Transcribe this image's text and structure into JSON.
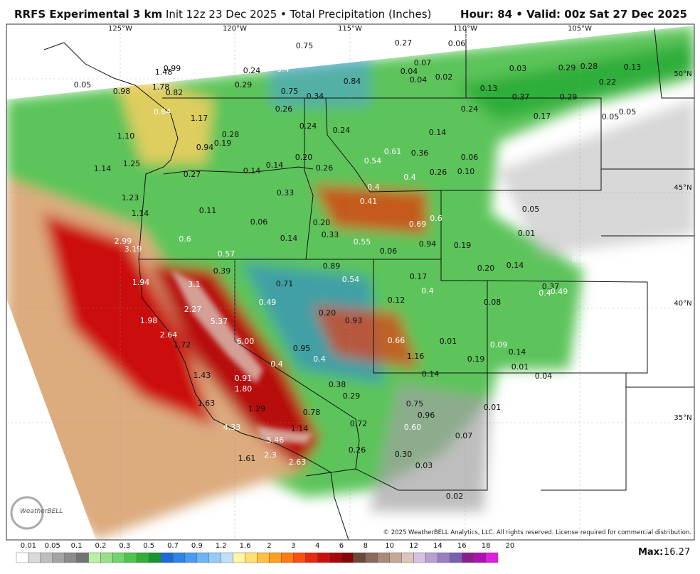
{
  "header": {
    "model": "RRFS Experimental 3 km",
    "info": "Init 12z 23 Dec 2025 • Total Precipitation (Inches)",
    "valid": "Hour: 84 • Valid: 00z Sat 27 Dec 2025"
  },
  "lon_labels": [
    "125°W",
    "120°W",
    "115°W",
    "110°W",
    "105°W"
  ],
  "lat_labels": [
    "50°N",
    "45°N",
    "40°N",
    "35°N"
  ],
  "map_labels": [
    "0.75",
    "0.45",
    "0.27",
    "0.09",
    "0.06",
    "0.07",
    "0.04",
    "0.04",
    "0.02",
    "0.03",
    "0.29",
    "0.28",
    "0.13",
    "0.22",
    "0.13",
    "0.37",
    "0.29",
    "1.48",
    "0.99",
    "0.24",
    "0.4",
    "0.29",
    "0.75",
    "0.34",
    "0.84",
    "0.05",
    "0.98",
    "1.78",
    "0.82",
    "0.64",
    "1.17",
    "0.26",
    "0.24",
    "0.17",
    "0.05",
    "0.05",
    "0.24",
    "0.24",
    "0.14",
    "0.28",
    "1.10",
    "0.19",
    "0.94",
    "0.61",
    "0.36",
    "0.06",
    "0.20",
    "0.26",
    "0.14",
    "0.14",
    "0.27",
    "1.14",
    "1.25",
    "0.54",
    "0.26",
    "0.10",
    "0.4",
    "0.4",
    "0.33",
    "1.23",
    "0.41",
    "0.05",
    "0.11",
    "1.14",
    "0.06",
    "0.20",
    "0.6",
    "0.69",
    "0.01",
    "0.33",
    "0.14",
    "0.55",
    "2.99",
    "0.6",
    "0.94",
    "0.19",
    "3.19",
    "0.06",
    "0.57",
    "0.89",
    "0.20",
    "0.14",
    "0.09",
    "0.39",
    "0.54",
    "0.17",
    "1.94",
    "3.1",
    "0.71",
    "0.37",
    "0.49",
    "0.4",
    "0.4",
    "0.49",
    "0.12",
    "0.08",
    "2.27",
    "0.20",
    "5.37",
    "1.98",
    "0.93",
    "2.64",
    "6.00",
    "0.66",
    "0.01",
    "0.09",
    "1.72",
    "0.95",
    "1.16",
    "0.14",
    "0.19",
    "0.4",
    "0.4",
    "0.01",
    "0.04",
    "1.43",
    "0.14",
    "0.91",
    "0.38",
    "1.80",
    "0.29",
    "1.63",
    "0.75",
    "0.01",
    "1.29",
    "0.78",
    "0.96",
    "4.33",
    "1.14",
    "0.72",
    "0.60",
    "0.07",
    "5.46",
    "0.26",
    "0.30",
    "1.61",
    "2.3",
    "2.63",
    "0.03",
    "0.02"
  ],
  "colorbar": {
    "labels": [
      "0.01",
      "0.05",
      "0.1",
      "0.2",
      "0.3",
      "0.5",
      "0.7",
      "0.9",
      "1.2",
      "1.6",
      "2",
      "3",
      "4",
      "6",
      "8",
      "10",
      "12",
      "14",
      "16",
      "18",
      "20"
    ],
    "colors": [
      "#ffffff",
      "#d9d9d9",
      "#bdbdbd",
      "#a3a3a3",
      "#8c8c8c",
      "#737373",
      "#b8f0a8",
      "#96e08a",
      "#73d36c",
      "#4fc24f",
      "#2fae3a",
      "#1a9430",
      "#1d6ad6",
      "#2b84e6",
      "#4a9cf0",
      "#6fb4f5",
      "#95cbf7",
      "#bfe0fa",
      "#fff4a0",
      "#ffe070",
      "#ffc040",
      "#ffa020",
      "#ff7a10",
      "#f85010",
      "#e82a10",
      "#cc1010",
      "#a80808",
      "#880606",
      "#6a4a3a",
      "#8a6a5a",
      "#a88a7a",
      "#c4a898",
      "#dcc4b8",
      "#d8c0e0",
      "#b8a0d0",
      "#9880c0",
      "#7860b0",
      "#8a208a",
      "#b010b0",
      "#e020e0"
    ]
  },
  "max_label": "Max:",
  "max_value": "16.27",
  "copyright": "© 2025 WeatherBELL Analytics, LLC. All rights reserved. License required for commercial distribution.",
  "logo": "WeatherBELL"
}
